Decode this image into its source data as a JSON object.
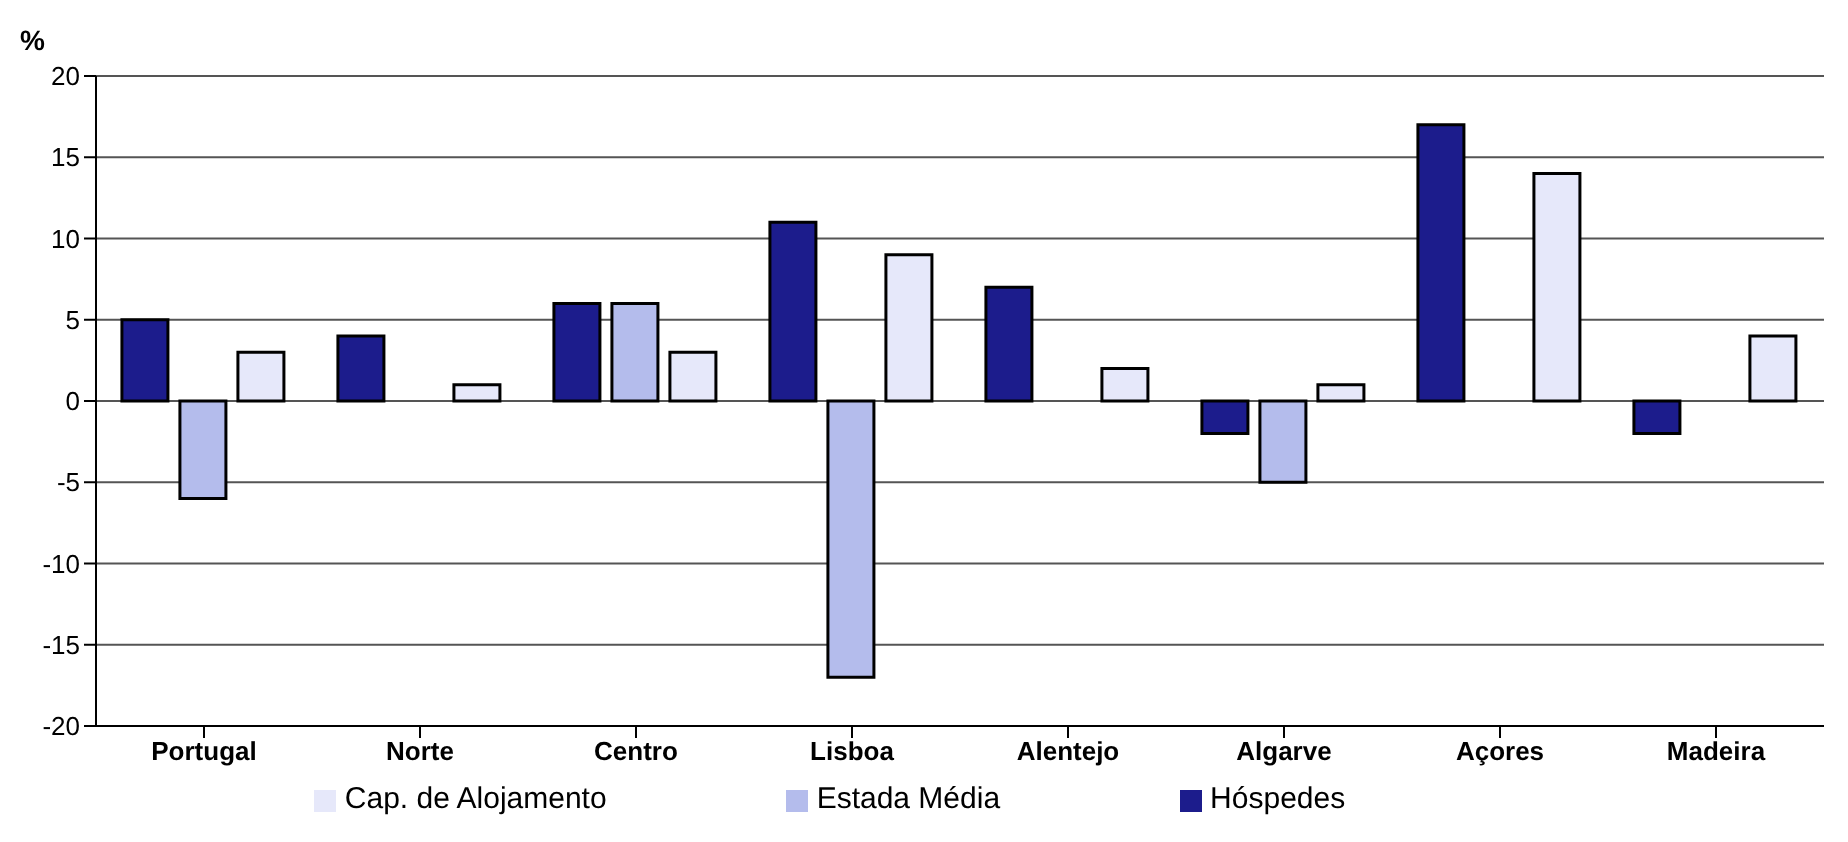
{
  "chart_data": {
    "type": "bar",
    "ylabel": "%",
    "categories": [
      "Portugal",
      "Norte",
      "Centro",
      "Lisboa",
      "Alentejo",
      "Algarve",
      "Açores",
      "Madeira"
    ],
    "series": [
      {
        "name": "Hóspedes",
        "color": "#1c1c8c",
        "values": [
          5,
          4,
          6,
          11,
          7,
          -2,
          17,
          -2
        ]
      },
      {
        "name": "Estada Média",
        "color": "#b4bcec",
        "values": [
          -6,
          null,
          6,
          -17,
          null,
          -5,
          null,
          null
        ]
      },
      {
        "name": "Cap. de Alojamento",
        "color": "#e6e8fa",
        "values": [
          3,
          1,
          3,
          9,
          2,
          1,
          14,
          4
        ]
      }
    ],
    "ylim": [
      -20,
      20
    ],
    "yticks": [
      -20,
      -15,
      -10,
      -5,
      0,
      5,
      10,
      15,
      20
    ],
    "grid": "y",
    "legend": "bottom"
  }
}
